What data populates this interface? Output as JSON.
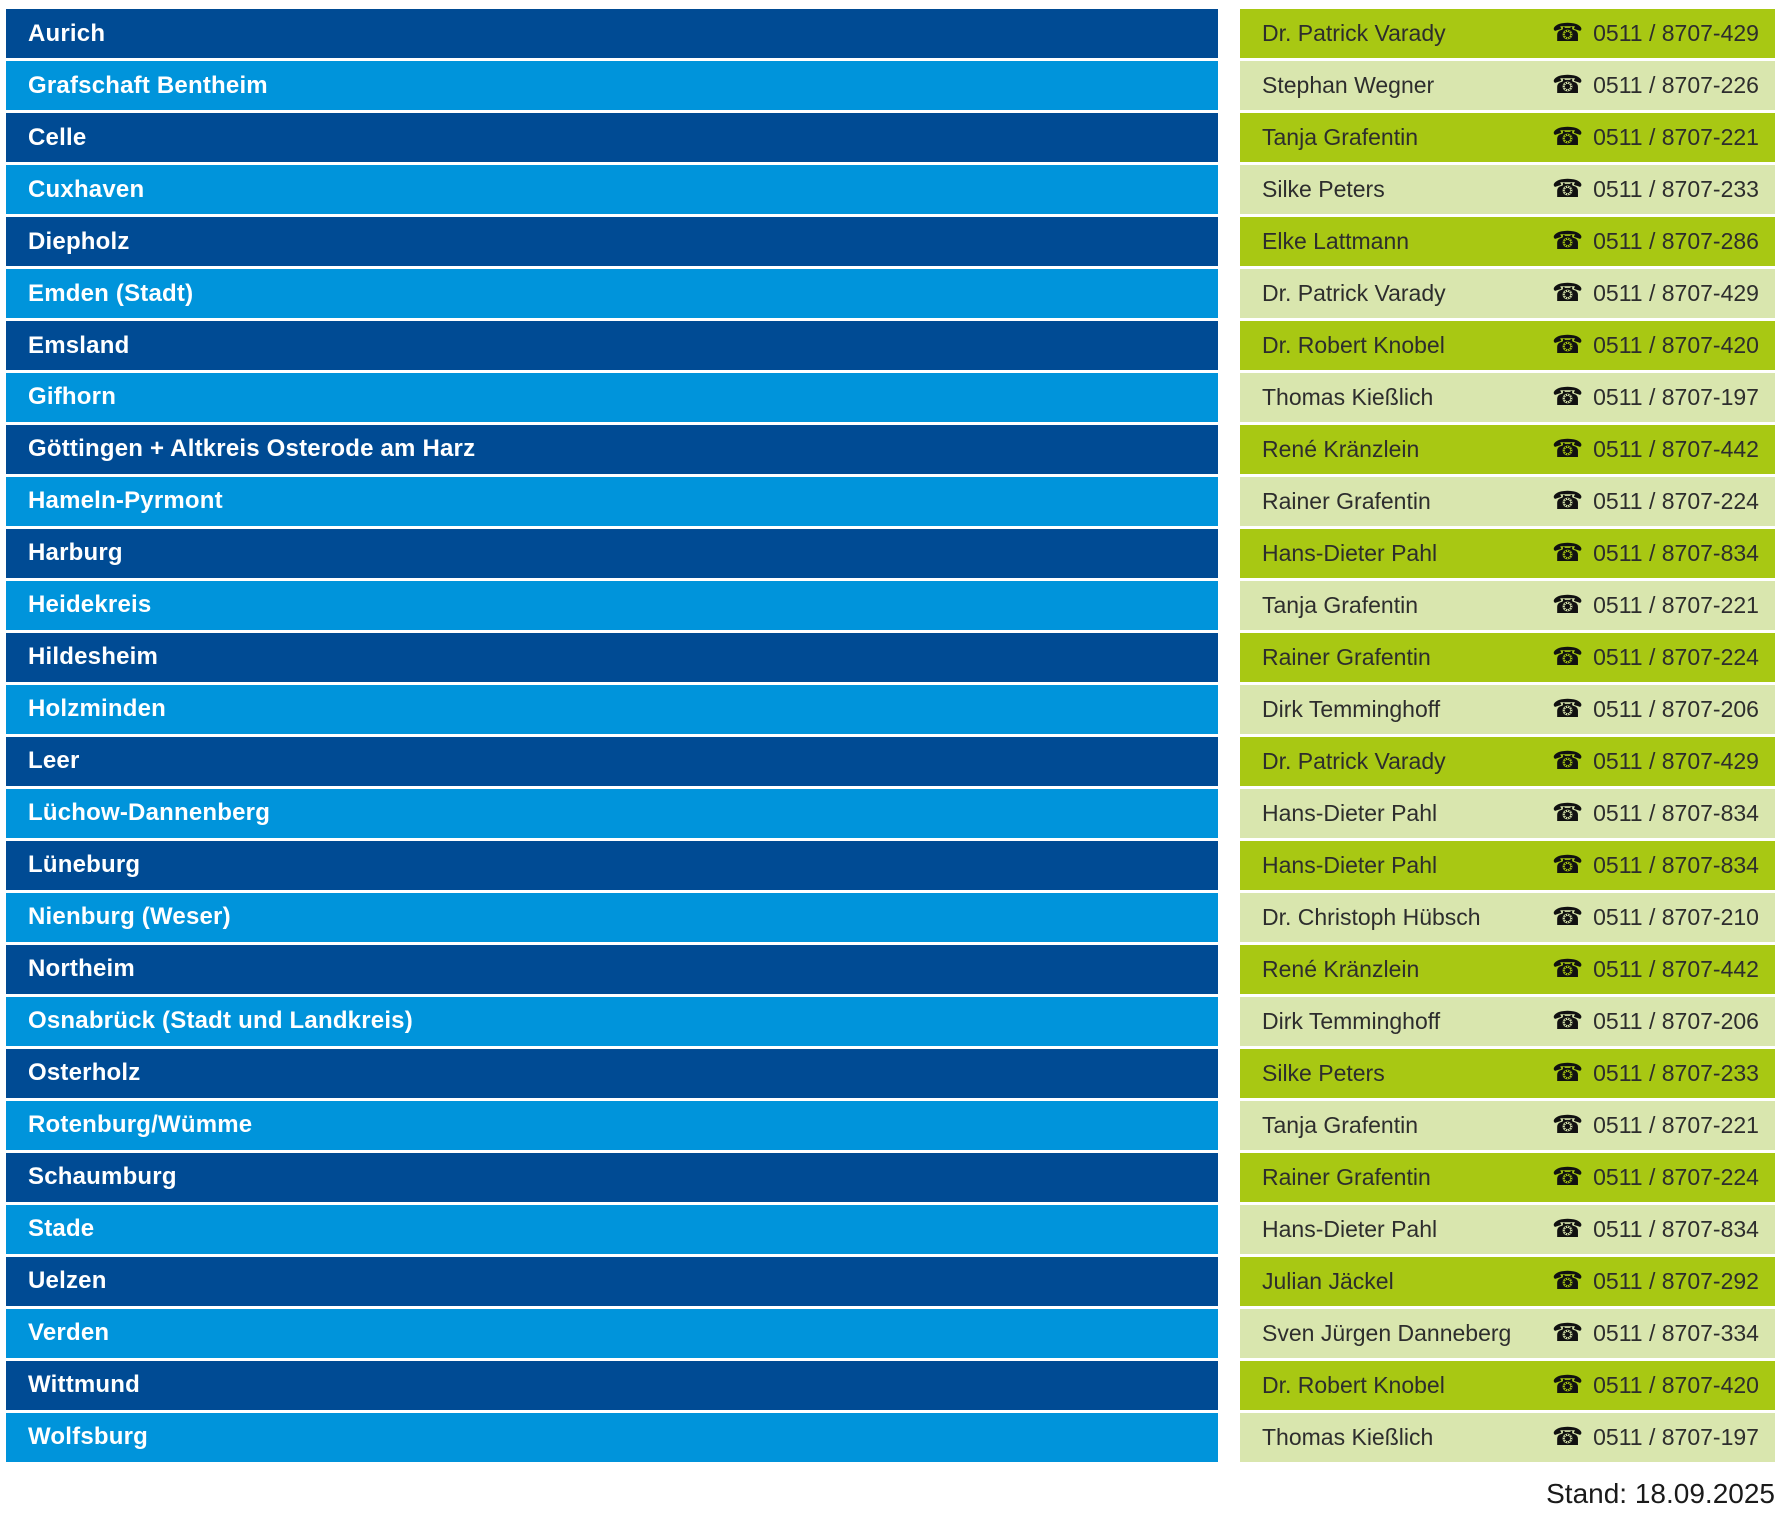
{
  "table": {
    "columns": [
      "district",
      "contact_person",
      "phone"
    ],
    "rows": [
      {
        "district": "Aurich",
        "contact": "Dr. Patrick Varady",
        "phone": "0511 / 8707-429"
      },
      {
        "district": "Grafschaft Bentheim",
        "contact": "Stephan Wegner",
        "phone": "0511 / 8707-226"
      },
      {
        "district": "Celle",
        "contact": "Tanja Grafentin",
        "phone": "0511 / 8707-221"
      },
      {
        "district": "Cuxhaven",
        "contact": "Silke Peters",
        "phone": "0511 / 8707-233"
      },
      {
        "district": "Diepholz",
        "contact": "Elke Lattmann",
        "phone": "0511 / 8707-286"
      },
      {
        "district": "Emden (Stadt)",
        "contact": "Dr. Patrick Varady",
        "phone": "0511 / 8707-429"
      },
      {
        "district": "Emsland",
        "contact": "Dr. Robert Knobel",
        "phone": "0511 / 8707-420"
      },
      {
        "district": "Gifhorn",
        "contact": "Thomas Kießlich",
        "phone": "0511 / 8707-197"
      },
      {
        "district": "Göttingen + Altkreis Osterode am Harz",
        "contact": "René Kränzlein",
        "phone": "0511 / 8707-442"
      },
      {
        "district": "Hameln-Pyrmont",
        "contact": "Rainer Grafentin",
        "phone": "0511 / 8707-224"
      },
      {
        "district": "Harburg",
        "contact": "Hans-Dieter Pahl",
        "phone": "0511 / 8707-834"
      },
      {
        "district": "Heidekreis",
        "contact": "Tanja Grafentin",
        "phone": "0511 / 8707-221"
      },
      {
        "district": "Hildesheim",
        "contact": "Rainer Grafentin",
        "phone": "0511 / 8707-224"
      },
      {
        "district": "Holzminden",
        "contact": "Dirk Temminghoff",
        "phone": "0511 / 8707-206"
      },
      {
        "district": "Leer",
        "contact": "Dr. Patrick Varady",
        "phone": "0511 / 8707-429"
      },
      {
        "district": "Lüchow-Dannenberg",
        "contact": "Hans-Dieter Pahl",
        "phone": "0511 / 8707-834"
      },
      {
        "district": "Lüneburg",
        "contact": "Hans-Dieter Pahl",
        "phone": "0511 / 8707-834"
      },
      {
        "district": "Nienburg (Weser)",
        "contact": "Dr. Christoph Hübsch",
        "phone": "0511 / 8707-210"
      },
      {
        "district": "Northeim",
        "contact": "René Kränzlein",
        "phone": "0511 / 8707-442"
      },
      {
        "district": "Osnabrück (Stadt und Landkreis)",
        "contact": "Dirk Temminghoff",
        "phone": "0511 / 8707-206"
      },
      {
        "district": "Osterholz",
        "contact": "Silke Peters",
        "phone": "0511 / 8707-233"
      },
      {
        "district": "Rotenburg/Wümme",
        "contact": "Tanja Grafentin",
        "phone": "0511 / 8707-221"
      },
      {
        "district": "Schaumburg",
        "contact": "Rainer Grafentin",
        "phone": "0511 / 8707-224"
      },
      {
        "district": "Stade",
        "contact": "Hans-Dieter Pahl",
        "phone": "0511 / 8707-834"
      },
      {
        "district": "Uelzen",
        "contact": "Julian Jäckel",
        "phone": "0511 / 8707-292"
      },
      {
        "district": "Verden",
        "contact": "Sven Jürgen Danneberg",
        "phone": "0511 / 8707-334"
      },
      {
        "district": "Wittmund",
        "contact": "Dr. Robert Knobel",
        "phone": "0511 / 8707-420"
      },
      {
        "district": "Wolfsburg",
        "contact": "Thomas Kießlich",
        "phone": "0511 / 8707-197"
      }
    ]
  },
  "icons": {
    "phone": "☎"
  },
  "colors": {
    "row_dark_blue": "#004B94",
    "row_light_blue": "#0094DB",
    "row_dark_green": "#A8C813",
    "row_light_green": "#D9E6AE",
    "district_text": "#FFFFFF",
    "contact_text": "#2D2D2D",
    "footer_text": "#1A1A1A",
    "background": "#FFFFFF"
  },
  "footer": {
    "stand_label": "Stand: 18.09.2025"
  }
}
